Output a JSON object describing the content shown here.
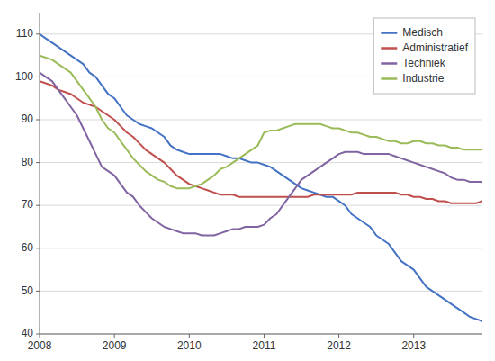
{
  "chart_data": {
    "type": "line",
    "x": [
      2008.0,
      2008.083,
      2008.167,
      2008.25,
      2008.333,
      2008.417,
      2008.5,
      2008.583,
      2008.667,
      2008.75,
      2008.833,
      2008.917,
      2009.0,
      2009.083,
      2009.167,
      2009.25,
      2009.333,
      2009.417,
      2009.5,
      2009.583,
      2009.667,
      2009.75,
      2009.833,
      2009.917,
      2010.0,
      2010.083,
      2010.167,
      2010.25,
      2010.333,
      2010.417,
      2010.5,
      2010.583,
      2010.667,
      2010.75,
      2010.833,
      2010.917,
      2011.0,
      2011.083,
      2011.167,
      2011.25,
      2011.333,
      2011.417,
      2011.5,
      2011.583,
      2011.667,
      2011.75,
      2011.833,
      2011.917,
      2012.0,
      2012.083,
      2012.167,
      2012.25,
      2012.333,
      2012.417,
      2012.5,
      2012.583,
      2012.667,
      2012.75,
      2012.833,
      2012.917,
      2013.0,
      2013.083,
      2013.167,
      2013.25,
      2013.333,
      2013.417,
      2013.5,
      2013.583,
      2013.667,
      2013.75,
      2013.833,
      2013.917
    ],
    "series": [
      {
        "name": "Medisch",
        "color": "#4472C4",
        "values": [
          110,
          109,
          108,
          107,
          106,
          105,
          104,
          103,
          101,
          100,
          98,
          96,
          95,
          93,
          91,
          90,
          89,
          88.5,
          88,
          87,
          86,
          84,
          83,
          82.5,
          82,
          82,
          82,
          82,
          82,
          82,
          81.5,
          81,
          81,
          80.5,
          80,
          80,
          79.5,
          79,
          78,
          77,
          76,
          75,
          74,
          73.5,
          73,
          72.5,
          72,
          72,
          71,
          70,
          68,
          67,
          66,
          65,
          63,
          62,
          61,
          59,
          57,
          56,
          55,
          53,
          51,
          50,
          49,
          48,
          47,
          46,
          45,
          44,
          43.5,
          43
        ]
      },
      {
        "name": "Administratief",
        "color": "#C0504D",
        "values": [
          99,
          98.5,
          98,
          97,
          96.5,
          96,
          95,
          94,
          93.5,
          93,
          92,
          91,
          90,
          88.5,
          87,
          86,
          84.5,
          83,
          82,
          81,
          80,
          78.5,
          77,
          76,
          75,
          74.5,
          74,
          73.5,
          73,
          72.5,
          72.5,
          72.5,
          72,
          72,
          72,
          72,
          72,
          72,
          72,
          72,
          72,
          72,
          72,
          72,
          72.5,
          72.5,
          72.5,
          72.5,
          72.5,
          72.5,
          72.5,
          73,
          73,
          73,
          73,
          73,
          73,
          73,
          72.5,
          72.5,
          72,
          72,
          71.5,
          71.5,
          71,
          71,
          70.5,
          70.5,
          70.5,
          70.5,
          70.5,
          71
        ]
      },
      {
        "name": "Techniek",
        "color": "#8064A2",
        "values": [
          101,
          100,
          99,
          97,
          95,
          93,
          91,
          88,
          85,
          82,
          79,
          78,
          77,
          75,
          73,
          72,
          70,
          68.5,
          67,
          66,
          65,
          64.5,
          64,
          63.5,
          63.5,
          63.5,
          63,
          63,
          63,
          63.5,
          64,
          64.5,
          64.5,
          65,
          65,
          65,
          65.5,
          67,
          68,
          70,
          72,
          74,
          76,
          77,
          78,
          79,
          80,
          81,
          82,
          82.5,
          82.5,
          82.5,
          82,
          82,
          82,
          82,
          82,
          81.5,
          81,
          80.5,
          80,
          79.5,
          79,
          78.5,
          78,
          77.5,
          76.5,
          76,
          76,
          75.5,
          75.5,
          75.5
        ]
      },
      {
        "name": "Industrie",
        "color": "#9BBB59",
        "values": [
          105,
          104.5,
          104,
          103,
          102,
          101,
          99,
          97,
          95,
          93,
          90,
          88,
          87,
          85,
          83,
          81,
          79.5,
          78,
          77,
          76,
          75.5,
          74.5,
          74,
          74,
          74,
          74.5,
          75,
          76,
          77,
          78.5,
          79,
          80,
          81,
          82,
          83,
          84,
          87,
          87.5,
          87.5,
          88,
          88.5,
          89,
          89,
          89,
          89,
          89,
          88.5,
          88,
          88,
          87.5,
          87,
          87,
          86.5,
          86,
          86,
          85.5,
          85,
          85,
          84.5,
          84.5,
          85,
          85,
          84.5,
          84.5,
          84,
          84,
          83.5,
          83.5,
          83,
          83,
          83,
          83
        ]
      }
    ],
    "xlim": [
      2008.0,
      2013.917
    ],
    "xticks": [
      2008,
      2009,
      2010,
      2011,
      2012,
      2013
    ],
    "ylim": [
      40,
      115
    ],
    "yticks": [
      40,
      50,
      60,
      70,
      80,
      90,
      100,
      110
    ],
    "grid": true,
    "legend": "upper right"
  }
}
